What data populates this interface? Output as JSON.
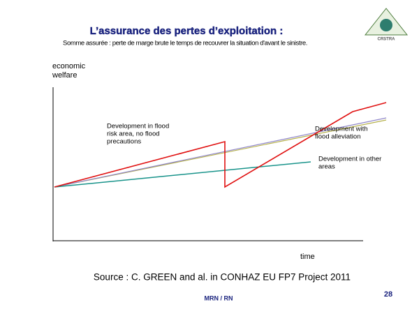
{
  "header": {
    "title": "L’assurance des pertes d’exploitation :",
    "subtitle": "Somme assurée : perte de marge brute le temps de recouvrer la situation d'avant le sinistre."
  },
  "logo": {
    "name": "CRSTRA"
  },
  "diagram": {
    "y_axis_label": [
      "economic",
      "welfare"
    ],
    "x_axis_label": "time",
    "annotations": [
      [
        "Development in flood",
        "risk area, no flood",
        "precautions"
      ],
      [
        "Development with",
        "flood alleviation"
      ],
      [
        "Development in other",
        "areas"
      ]
    ]
  },
  "source": "Source : C. GREEN and al. in CONHAZ EU FP7 Project  2011",
  "footer": {
    "left": "MRN / RN",
    "page": "28"
  }
}
